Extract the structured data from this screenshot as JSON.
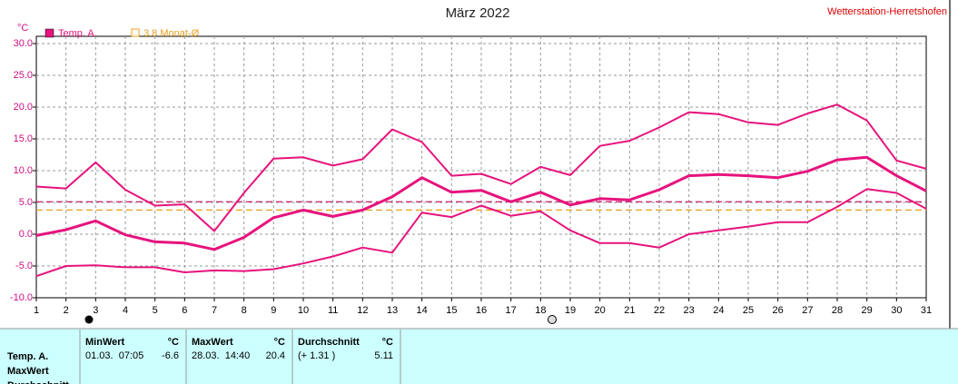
{
  "chart_data": {
    "type": "line",
    "title": "März 2022",
    "source": "Wetterstation-Herretshofen",
    "y_label": "°C",
    "x": [
      1,
      2,
      3,
      4,
      5,
      6,
      7,
      8,
      9,
      10,
      11,
      12,
      13,
      14,
      15,
      16,
      17,
      18,
      19,
      20,
      21,
      22,
      23,
      24,
      25,
      26,
      27,
      28,
      29,
      30,
      31
    ],
    "xlim": [
      1,
      31
    ],
    "xticks": [
      1,
      2,
      3,
      4,
      5,
      6,
      7,
      8,
      9,
      10,
      11,
      12,
      13,
      14,
      15,
      16,
      17,
      18,
      19,
      20,
      21,
      22,
      23,
      24,
      25,
      26,
      27,
      28,
      29,
      30,
      31
    ],
    "ylim": [
      -10,
      30
    ],
    "yticks": [
      {
        "value": -10,
        "label": "-10.0"
      },
      {
        "value": -5,
        "label": "-5.0"
      },
      {
        "value": 0,
        "label": "0.0"
      },
      {
        "value": 5,
        "label": "5.0"
      },
      {
        "value": 10,
        "label": "10.0"
      },
      {
        "value": 15,
        "label": "15.0"
      },
      {
        "value": 20,
        "label": "20.0"
      },
      {
        "value": 25,
        "label": "25.0"
      },
      {
        "value": 30,
        "label": "30.0"
      }
    ],
    "grid": true,
    "series": [
      {
        "name": "Temp. A.",
        "color": "#e6137d",
        "width": 3,
        "values": [
          -0.2,
          0.7,
          2.1,
          -0.1,
          -1.2,
          -1.4,
          -2.4,
          -0.5,
          2.6,
          3.8,
          2.8,
          3.8,
          5.9,
          8.9,
          6.6,
          6.9,
          5.1,
          6.6,
          4.6,
          5.6,
          5.4,
          7.0,
          9.2,
          9.4,
          9.2,
          8.9,
          9.9,
          11.7,
          12.1,
          9.2,
          6.8
        ]
      },
      {
        "color": "#e6137d",
        "width": 2,
        "values": [
          7.5,
          7.2,
          11.3,
          7.0,
          4.5,
          4.7,
          0.5,
          6.5,
          11.9,
          12.1,
          10.8,
          11.8,
          16.5,
          14.5,
          9.2,
          9.5,
          7.9,
          10.6,
          9.3,
          13.9,
          14.7,
          16.8,
          19.2,
          18.9,
          17.6,
          17.2,
          19.0,
          20.4,
          17.9,
          11.6,
          10.3
        ]
      },
      {
        "color": "#e6137d",
        "width": 2,
        "values": [
          -6.6,
          -5.0,
          -4.9,
          -5.2,
          -5.2,
          -6.0,
          -5.7,
          -5.8,
          -5.5,
          -4.6,
          -3.5,
          -2.1,
          -2.9,
          3.4,
          2.7,
          4.5,
          2.9,
          3.6,
          0.6,
          -1.4,
          -1.4,
          -2.1,
          0.0,
          0.6,
          1.2,
          1.9,
          1.9,
          4.3,
          7.1,
          6.5,
          4.0
        ]
      }
    ],
    "reference_lines": [
      {
        "value": 5.11,
        "color": "#c8206e"
      },
      {
        "value": 3.8,
        "label": "3.8 Monat-Ø",
        "color": "#e8a020"
      }
    ]
  },
  "stats": {
    "row_labels": [
      "Temp. A.",
      "MaxWert",
      "Durchschnitt"
    ],
    "columns": [
      {
        "header": "MinWert",
        "unit": "°C",
        "when": "01.03.  07:05",
        "value": -6.6
      },
      {
        "header": "MaxWert",
        "unit": "°C",
        "when": "28.03.  14:40",
        "value": 20.4
      },
      {
        "header": "Durchschnitt",
        "unit": "°C",
        "when": "(+ 1.31 )",
        "value": 5.11
      }
    ]
  }
}
